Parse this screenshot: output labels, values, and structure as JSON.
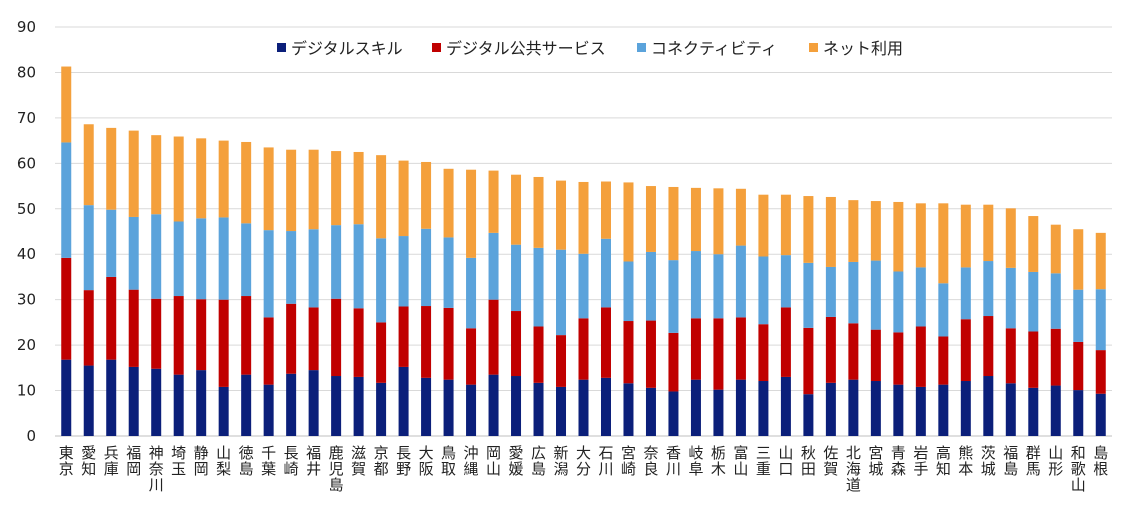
{
  "chart_data": {
    "type": "bar",
    "stacked": true,
    "ylim": [
      0,
      90
    ],
    "yticks": [
      0,
      10,
      20,
      30,
      40,
      50,
      60,
      70,
      80,
      90
    ],
    "grid": true,
    "legend_position": "top",
    "categories": [
      "東京",
      "愛知",
      "兵庫",
      "福岡",
      "神奈川",
      "埼玉",
      "静岡",
      "山梨",
      "徳島",
      "千葉",
      "長崎",
      "福井",
      "鹿児島",
      "滋賀",
      "京都",
      "長野",
      "大阪",
      "鳥取",
      "沖縄",
      "岡山",
      "愛媛",
      "広島",
      "新潟",
      "大分",
      "石川",
      "宮崎",
      "奈良",
      "香川",
      "岐阜",
      "栃木",
      "富山",
      "三重",
      "山口",
      "秋田",
      "佐賀",
      "北海道",
      "宮城",
      "青森",
      "岩手",
      "高知",
      "熊本",
      "茨城",
      "福島",
      "群馬",
      "山形",
      "和歌山",
      "島根"
    ],
    "series": [
      {
        "name": "デジタルスキル",
        "color": "#0b1f7a",
        "values": [
          16.8,
          15.5,
          16.8,
          15.2,
          14.8,
          13.5,
          14.5,
          10.8,
          13.5,
          11.3,
          13.7,
          14.5,
          13.2,
          13,
          11.7,
          15.2,
          12.8,
          12.4,
          11.3,
          13.5,
          13.2,
          11.7,
          10.8,
          12.4,
          12.8,
          11.6,
          10.6,
          9.8,
          12.4,
          10.2,
          12.4,
          12.1,
          13,
          9.2,
          11.7,
          12.4,
          12.1,
          11.3,
          10.8,
          11.3,
          12.1,
          13.2,
          11.6,
          10.6,
          11.1,
          10.1,
          9.3
        ]
      },
      {
        "name": "デジタル公共サービス",
        "color": "#c00000",
        "values": [
          22.4,
          16.6,
          18.2,
          17,
          15.4,
          17.3,
          15.6,
          19.2,
          17.3,
          14.8,
          15.4,
          13.8,
          17,
          15.1,
          13.3,
          13.3,
          15.8,
          15.8,
          12.4,
          16.5,
          14.3,
          12.4,
          11.4,
          13.5,
          15.5,
          13.7,
          14.8,
          12.9,
          13.5,
          15.7,
          13.7,
          12.5,
          15.3,
          14.6,
          14.5,
          12.4,
          11.3,
          11.5,
          13.3,
          10.6,
          13.6,
          13.2,
          12.1,
          12.4,
          12.5,
          10.6,
          9.6
        ]
      },
      {
        "name": "コネクティビティ",
        "color": "#5ba3db",
        "values": [
          25.4,
          18.7,
          14.8,
          16,
          18.6,
          16.4,
          17.8,
          18.1,
          16,
          19.2,
          16,
          17.2,
          16.2,
          18.5,
          18.5,
          15.5,
          17,
          15.5,
          15.5,
          14.7,
          14.6,
          17.3,
          18.8,
          14.2,
          15.1,
          13.1,
          15.1,
          16,
          14.8,
          14.1,
          15.8,
          14.9,
          11.5,
          14.3,
          11,
          13.5,
          15.2,
          13.4,
          13,
          11.7,
          11.4,
          12.1,
          13.3,
          13.1,
          12.2,
          11.5,
          13.4
        ]
      },
      {
        "name": "ネット利用",
        "color": "#f4a03c",
        "values": [
          16.7,
          17.8,
          18,
          19,
          17.4,
          18.7,
          17.6,
          16.9,
          17.9,
          18.2,
          17.9,
          17.5,
          16.3,
          15.9,
          18.3,
          16.6,
          14.7,
          15.1,
          19.4,
          13.7,
          15.4,
          15.6,
          15.2,
          15.8,
          12.6,
          17.4,
          14.5,
          16.1,
          13.9,
          14.5,
          12.5,
          13.6,
          13.3,
          14.7,
          15.4,
          13.6,
          13.1,
          15.3,
          14.1,
          17.6,
          13.8,
          12.4,
          13.1,
          12.3,
          10.7,
          13.3,
          12.4
        ]
      }
    ]
  }
}
